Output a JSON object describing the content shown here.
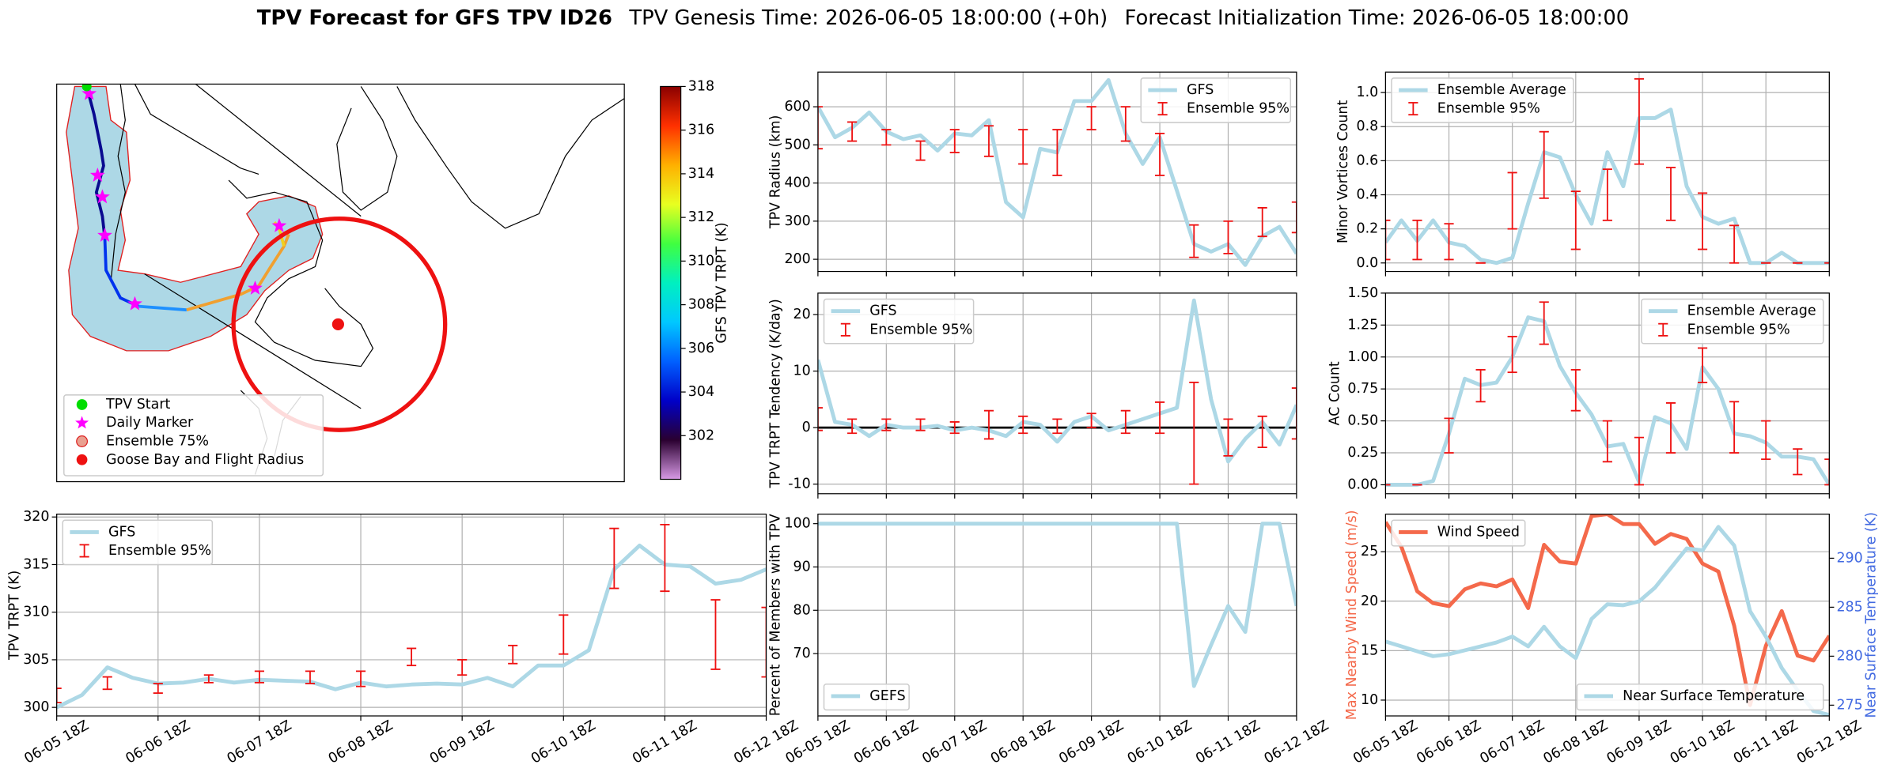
{
  "figure_title": [
    "TPV Forecast for GFS TPV ID26",
    "TPV Genesis Time: 2026-06-05 18:00:00 (+0h)",
    "Forecast Initialization Time: 2026-06-05 18:00:00"
  ],
  "chart_data": [
    {
      "type": "map",
      "legend": [
        {
          "name": "TPV Start",
          "color": "#00dd00",
          "marker": "circle"
        },
        {
          "name": "Daily Marker",
          "color": "#ff00ff",
          "marker": "star"
        },
        {
          "name": "Ensemble 75%",
          "color": "#e9a090",
          "edgecolor": "#dd2222",
          "marker": "circle"
        },
        {
          "name": "Goose Bay and Flight Radius",
          "color": "#ee1111",
          "marker": "circle"
        }
      ],
      "legend_loc": "lower left",
      "colorbar": {
        "label": "GFS TPV TRPT (K)",
        "lim": [
          300,
          318
        ],
        "ticks": [
          302,
          304,
          306,
          308,
          310,
          312,
          314,
          316,
          318
        ],
        "colors": [
          "#d89ae6",
          "#2a0030",
          "#0000c8",
          "#0060ff",
          "#00c8ff",
          "#00f0c0",
          "#40ff40",
          "#e8ff20",
          "#ffb000",
          "#ff3000",
          "#8a0000"
        ]
      }
    },
    {
      "type": "line",
      "ylabel": "TPV TRPT (K)",
      "categories": [
        "06-05 18Z",
        null,
        null,
        null,
        "06-06 18Z",
        null,
        null,
        null,
        "06-07 18Z",
        null,
        null,
        null,
        "06-08 18Z",
        null,
        null,
        null,
        "06-09 18Z",
        null,
        null,
        null,
        "06-10 18Z",
        null,
        null,
        null,
        "06-11 18Z",
        null,
        null,
        null,
        "06-12 18Z"
      ],
      "ylim": [
        299.1,
        320.3
      ],
      "yticks": [
        300,
        305,
        310,
        315,
        320
      ],
      "grid": true,
      "legend": "upper left",
      "series": [
        {
          "name": "GFS",
          "color": "#add8e6",
          "values": [
            300.0,
            301.3,
            304.2,
            303.1,
            302.5,
            302.6,
            303.0,
            302.6,
            302.9,
            302.8,
            302.7,
            301.9,
            302.6,
            302.2,
            302.4,
            302.5,
            302.4,
            303.1,
            302.2,
            304.4,
            304.4,
            306.0,
            314.5,
            317.0,
            315.0,
            314.8,
            313.0,
            313.4,
            314.5
          ]
        }
      ],
      "errorbars": {
        "name": "Ensemble 95%",
        "color": "#ee1111",
        "low": [
          300.5,
          null,
          301.9,
          null,
          301.5,
          null,
          302.6,
          null,
          302.6,
          null,
          302.5,
          null,
          302.2,
          null,
          304.4,
          null,
          303.4,
          null,
          304.6,
          null,
          305.6,
          null,
          312.5,
          null,
          312.2,
          null,
          304.0,
          null,
          303.2
        ],
        "high": [
          302.0,
          null,
          303.2,
          null,
          302.5,
          null,
          303.4,
          null,
          303.8,
          null,
          303.8,
          null,
          303.8,
          null,
          306.2,
          null,
          305.0,
          null,
          306.5,
          null,
          309.7,
          null,
          318.8,
          null,
          319.2,
          null,
          311.3,
          null,
          310.5
        ]
      }
    },
    {
      "type": "line",
      "ylabel": "TPV Radius (km)",
      "ylim": [
        168,
        691
      ],
      "yticks": [
        200,
        300,
        400,
        500,
        600
      ],
      "grid": true,
      "legend": "upper right",
      "series": [
        {
          "name": "GFS",
          "color": "#add8e6",
          "values": [
            600,
            520,
            545,
            585,
            535,
            515,
            525,
            485,
            530,
            525,
            565,
            350,
            310,
            490,
            480,
            615,
            615,
            670,
            530,
            450,
            520,
            380,
            240,
            220,
            240,
            185,
            260,
            285,
            215
          ]
        }
      ],
      "errorbars": {
        "name": "Ensemble 95%",
        "color": "#ee1111",
        "low": [
          490,
          null,
          510,
          null,
          500,
          null,
          460,
          null,
          480,
          null,
          470,
          null,
          450,
          null,
          420,
          null,
          540,
          null,
          510,
          null,
          420,
          null,
          205,
          null,
          215,
          null,
          260,
          null,
          270
        ],
        "high": [
          600,
          null,
          560,
          null,
          540,
          null,
          510,
          null,
          540,
          null,
          550,
          null,
          540,
          null,
          540,
          null,
          600,
          null,
          600,
          null,
          530,
          null,
          290,
          null,
          300,
          null,
          335,
          null,
          350
        ]
      }
    },
    {
      "type": "line",
      "ylabel": "TPV TRPT Tendency (K/day)",
      "ylim": [
        -11.7,
        23.8
      ],
      "yticks": [
        -10,
        0,
        10,
        20
      ],
      "grid": true,
      "legend": "upper left",
      "hline": 0,
      "series": [
        {
          "name": "GFS",
          "color": "#add8e6",
          "values": [
            12,
            1,
            0.5,
            -1.5,
            0.5,
            0,
            0,
            0.3,
            -0.5,
            0,
            -0.5,
            -1.5,
            1,
            0.5,
            -2.5,
            1,
            2,
            -0.5,
            0.5,
            1.5,
            2.5,
            3.5,
            22.5,
            5,
            -6,
            -2,
            1,
            -3,
            4
          ]
        }
      ],
      "errorbars": {
        "name": "Ensemble 95%",
        "color": "#ee1111",
        "low": [
          -0.5,
          null,
          -1,
          null,
          -0.5,
          null,
          -0.5,
          null,
          -1,
          null,
          -2,
          null,
          -1,
          null,
          -1,
          null,
          0,
          null,
          -1,
          null,
          -1,
          null,
          -10,
          null,
          -5,
          null,
          -3.5,
          null,
          -2
        ],
        "high": [
          3.5,
          null,
          1.5,
          null,
          1.5,
          null,
          1.5,
          null,
          1,
          null,
          3,
          null,
          2,
          null,
          1.5,
          null,
          2.5,
          null,
          3,
          null,
          4.5,
          null,
          8,
          null,
          1.5,
          null,
          2,
          null,
          7
        ]
      }
    },
    {
      "type": "line",
      "ylabel": "Percent of Members with TPV",
      "categories": [
        "06-05 18Z",
        null,
        null,
        null,
        "06-06 18Z",
        null,
        null,
        null,
        "06-07 18Z",
        null,
        null,
        null,
        "06-08 18Z",
        null,
        null,
        null,
        "06-09 18Z",
        null,
        null,
        null,
        "06-10 18Z",
        null,
        null,
        null,
        "06-11 18Z",
        null,
        null,
        null,
        "06-12 18Z"
      ],
      "ylim": [
        55.6,
        102.2
      ],
      "yticks": [
        70,
        80,
        90,
        100
      ],
      "grid": true,
      "legend": "lower left",
      "series": [
        {
          "name": "GEFS",
          "color": "#add8e6",
          "values": [
            100,
            100,
            100,
            100,
            100,
            100,
            100,
            100,
            100,
            100,
            100,
            100,
            100,
            100,
            100,
            100,
            100,
            100,
            100,
            100,
            100,
            100,
            62.5,
            72,
            81,
            75,
            100,
            100,
            81
          ]
        }
      ]
    },
    {
      "type": "line",
      "ylabel": "Minor Vortices Count",
      "ylim": [
        -0.05,
        1.12
      ],
      "yticks": [
        {
          "value": 0,
          "label": "0.0"
        },
        {
          "value": 0.2,
          "label": "0.2"
        },
        {
          "value": 0.4,
          "label": "0.4"
        },
        {
          "value": 0.6,
          "label": "0.6"
        },
        {
          "value": 0.8,
          "label": "0.8"
        },
        {
          "value": 1,
          "label": "1.0"
        }
      ],
      "grid": true,
      "legend": "upper left",
      "series": [
        {
          "name": "Ensemble Average",
          "color": "#add8e6",
          "values": [
            0.12,
            0.25,
            0.13,
            0.25,
            0.12,
            0.1,
            0.02,
            0,
            0.03,
            0.35,
            0.65,
            0.62,
            0.4,
            0.23,
            0.65,
            0.45,
            0.85,
            0.85,
            0.9,
            0.45,
            0.27,
            0.23,
            0.26,
            0,
            0,
            0.06,
            0,
            0,
            0
          ]
        }
      ],
      "errorbars": {
        "name": "Ensemble 95%",
        "color": "#ee1111",
        "low": [
          0.02,
          null,
          0.02,
          null,
          0.02,
          null,
          0,
          null,
          0.2,
          null,
          0.38,
          null,
          0.08,
          null,
          0.25,
          null,
          0.58,
          null,
          0.25,
          null,
          0.08,
          null,
          0,
          null,
          0,
          null,
          0,
          null,
          0
        ],
        "high": [
          0.25,
          null,
          0.25,
          null,
          0.23,
          null,
          0,
          null,
          0.53,
          null,
          0.77,
          null,
          0.42,
          null,
          0.55,
          null,
          1.08,
          null,
          0.56,
          null,
          0.41,
          null,
          0.22,
          null,
          0,
          null,
          0,
          null,
          0
        ]
      }
    },
    {
      "type": "line",
      "ylabel": "AC Count",
      "ylim": [
        -0.07,
        1.5
      ],
      "yticks": [
        {
          "value": 0,
          "label": "0.00"
        },
        {
          "value": 0.25,
          "label": "0.25"
        },
        {
          "value": 0.5,
          "label": "0.50"
        },
        {
          "value": 0.75,
          "label": "0.75"
        },
        {
          "value": 1,
          "label": "1.00"
        },
        {
          "value": 1.25,
          "label": "1.25"
        },
        {
          "value": 1.5,
          "label": "1.50"
        }
      ],
      "grid": true,
      "legend": "upper right",
      "series": [
        {
          "name": "Ensemble Average",
          "color": "#add8e6",
          "values": [
            0,
            0,
            0,
            0.03,
            0.4,
            0.83,
            0.78,
            0.8,
            1,
            1.31,
            1.28,
            0.93,
            0.72,
            0.55,
            0.3,
            0.32,
            0.02,
            0.53,
            0.48,
            0.28,
            0.92,
            0.75,
            0.4,
            0.38,
            0.33,
            0.22,
            0.22,
            0.2,
            0
          ]
        }
      ],
      "errorbars": {
        "name": "Ensemble 95%",
        "color": "#ee1111",
        "low": [
          0,
          null,
          0,
          null,
          0.25,
          null,
          0.65,
          null,
          0.88,
          null,
          1.1,
          null,
          0.58,
          null,
          0.18,
          null,
          0,
          null,
          0.25,
          null,
          0.8,
          null,
          0.25,
          null,
          0.2,
          null,
          0.08,
          null,
          0
        ],
        "high": [
          0,
          null,
          0,
          null,
          0.52,
          null,
          0.9,
          null,
          1.16,
          null,
          1.43,
          null,
          0.9,
          null,
          0.5,
          null,
          0.37,
          null,
          0.64,
          null,
          1.07,
          null,
          0.65,
          null,
          0.5,
          null,
          0.28,
          null,
          0.2
        ]
      }
    },
    {
      "type": "line",
      "ylabel": "Max Nearby Wind Speed (m/s)",
      "ylabel_color": "#f4694b",
      "y2label": "Near Surface Temperature (K)",
      "y2label_color": "#4169e1",
      "categories": [
        "06-05 18Z",
        null,
        null,
        null,
        "06-06 18Z",
        null,
        null,
        null,
        "06-07 18Z",
        null,
        null,
        null,
        "06-08 18Z",
        null,
        null,
        null,
        "06-09 18Z",
        null,
        null,
        null,
        "06-10 18Z",
        null,
        null,
        null,
        "06-11 18Z",
        null,
        null,
        null,
        "06-12 18Z"
      ],
      "ylim": [
        8.4,
        28.8
      ],
      "yticks": [
        10,
        15,
        20,
        25
      ],
      "y2lim": [
        273.9,
        294.5
      ],
      "y2ticks": [
        275,
        280,
        285,
        290
      ],
      "grid": true,
      "legend": "upper left",
      "legend2": "lower right",
      "series": [
        {
          "name": "Wind Speed",
          "color": "#f4694b",
          "values": [
            28,
            25.5,
            21,
            19.8,
            19.5,
            21.2,
            21.8,
            21.5,
            22.2,
            19.3,
            25.7,
            24,
            23.8,
            28.6,
            28.8,
            27.8,
            27.8,
            25.8,
            26.8,
            26.3,
            23.8,
            23,
            17.5,
            9.5,
            15.5,
            19,
            14.5,
            14,
            16.5
          ]
        },
        {
          "name": "Near Surface Temperature",
          "color": "#add8e6",
          "axis": "y2",
          "values": [
            281.5,
            281,
            280.5,
            280,
            280.2,
            280.6,
            281,
            281.4,
            282,
            281,
            283,
            281,
            279.8,
            283.8,
            285.3,
            285.2,
            285.6,
            287,
            289,
            291,
            290.8,
            293.2,
            291.3,
            284.6,
            282,
            278.8,
            276.5,
            274.4,
            274
          ]
        }
      ]
    }
  ]
}
